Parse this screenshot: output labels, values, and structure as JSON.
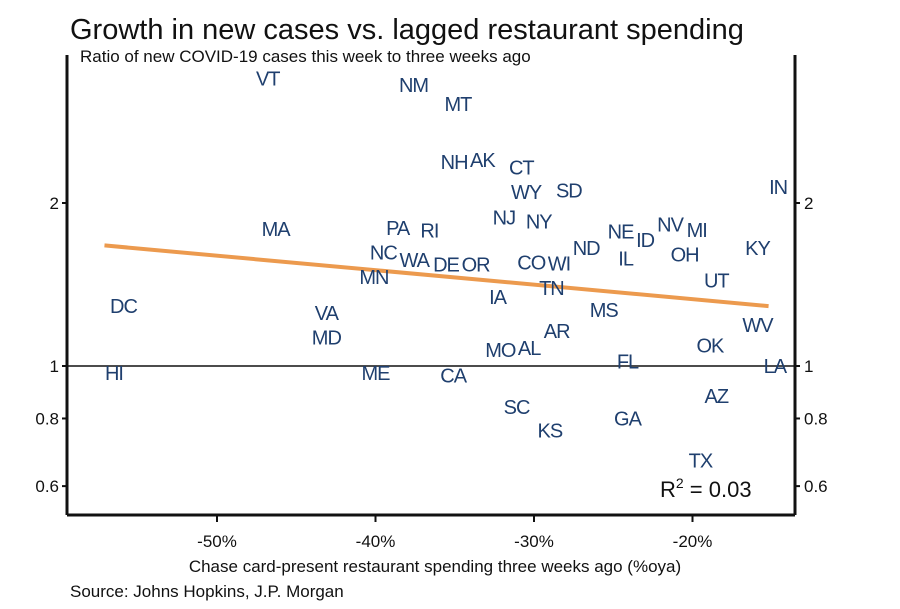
{
  "chart_data": {
    "type": "scatter",
    "title": "Growth in new cases vs. lagged restaurant spending",
    "subtitle": "Ratio of new COVID-19 cases this week to three weeks ago",
    "xlabel": "Chase card-present restaurant spending three weeks ago (%oya)",
    "ylabel": "",
    "source": "Source:  Johns Hopkins, J.P. Morgan",
    "annotation": {
      "label": "R",
      "sup": "2",
      "text": " = 0.03"
    },
    "xlim": [
      -59.5,
      -13.5
    ],
    "ylim": [
      0.53,
      3.75
    ],
    "y_scale": "log",
    "x_ticks": [
      -50,
      -40,
      -30,
      -20
    ],
    "x_tick_labels": [
      "-50%",
      "-40%",
      "-30%",
      "-20%"
    ],
    "y_ticks": [
      0.6,
      0.8,
      1,
      2
    ],
    "y_tick_labels": [
      "0.6",
      "0.8",
      "1",
      "2"
    ],
    "reference_line_y": 1,
    "grid": false,
    "point_color": "#1f3f6e",
    "trend_color": "#ec9a4e",
    "trendline": {
      "x": [
        -57.1,
        -15.2
      ],
      "y": [
        1.67,
        1.29
      ]
    },
    "points": [
      {
        "label": "VT",
        "x": -46.8,
        "y": 3.55
      },
      {
        "label": "NM",
        "x": -37.6,
        "y": 3.3
      },
      {
        "label": "MT",
        "x": -34.8,
        "y": 3.05
      },
      {
        "label": "NH",
        "x": -35.0,
        "y": 2.38
      },
      {
        "label": "AK",
        "x": -33.3,
        "y": 2.4
      },
      {
        "label": "CT",
        "x": -30.8,
        "y": 2.27
      },
      {
        "label": "WY",
        "x": -30.5,
        "y": 2.15
      },
      {
        "label": "SD",
        "x": -27.8,
        "y": 2.11
      },
      {
        "label": "IN",
        "x": -14.6,
        "y": 2.14
      },
      {
        "label": "MA",
        "x": -46.3,
        "y": 1.79
      },
      {
        "label": "PA",
        "x": -38.6,
        "y": 1.8
      },
      {
        "label": "RI",
        "x": -36.6,
        "y": 1.78
      },
      {
        "label": "NJ",
        "x": -31.9,
        "y": 1.88
      },
      {
        "label": "NY",
        "x": -29.7,
        "y": 1.85
      },
      {
        "label": "NE",
        "x": -24.1,
        "y": 1.77
      },
      {
        "label": "ID",
        "x": -22.8,
        "y": 1.71
      },
      {
        "label": "NV",
        "x": -21.5,
        "y": 1.79
      },
      {
        "label": "MI",
        "x": -20.3,
        "y": 1.74
      },
      {
        "label": "OH",
        "x": -20.5,
        "y": 1.68
      },
      {
        "label": "KY",
        "x": -15.9,
        "y": 1.65
      },
      {
        "label": "ND",
        "x": -27.0,
        "y": 1.65
      },
      {
        "label": "IL",
        "x": -24.2,
        "y": 1.58
      },
      {
        "label": "NC",
        "x": -39.1,
        "y": 1.58
      },
      {
        "label": "WA",
        "x": -37.4,
        "y": 1.57
      },
      {
        "label": "DE",
        "x": -36.0,
        "y": 1.54
      },
      {
        "label": "MN",
        "x": -40.1,
        "y": 1.5
      },
      {
        "label": "OR",
        "x": -33.8,
        "y": 1.54
      },
      {
        "label": "CO",
        "x": -29.9,
        "y": 1.54
      },
      {
        "label": "WI",
        "x": -28.4,
        "y": 1.54
      },
      {
        "label": "TN",
        "x": -28.9,
        "y": 1.41
      },
      {
        "label": "UT",
        "x": -18.5,
        "y": 1.44
      },
      {
        "label": "IA",
        "x": -32.3,
        "y": 1.34
      },
      {
        "label": "DC",
        "x": -55.9,
        "y": 1.29
      },
      {
        "label": "MS",
        "x": -25.6,
        "y": 1.27
      },
      {
        "label": "VA",
        "x": -43.1,
        "y": 1.21
      },
      {
        "label": "MD",
        "x": -43.1,
        "y": 1.17
      },
      {
        "label": "AR",
        "x": -28.6,
        "y": 1.16
      },
      {
        "label": "WV",
        "x": -15.9,
        "y": 1.19
      },
      {
        "label": "OK",
        "x": -18.9,
        "y": 1.09
      },
      {
        "label": "MO",
        "x": -32.0,
        "y": 1.07
      },
      {
        "label": "AL",
        "x": -30.4,
        "y": 1.08
      },
      {
        "label": "FL",
        "x": -24.1,
        "y": 1.02
      },
      {
        "label": "LA",
        "x": -14.8,
        "y": 1.0
      },
      {
        "label": "HI",
        "x": -56.5,
        "y": 0.97
      },
      {
        "label": "ME",
        "x": -40.0,
        "y": 0.97
      },
      {
        "label": "CA",
        "x": -35.1,
        "y": 0.96
      },
      {
        "label": "AZ",
        "x": -18.5,
        "y": 0.88
      },
      {
        "label": "SC",
        "x": -31.1,
        "y": 0.84
      },
      {
        "label": "GA",
        "x": -24.1,
        "y": 0.8
      },
      {
        "label": "KS",
        "x": -29.0,
        "y": 0.76
      },
      {
        "label": "TX",
        "x": -19.5,
        "y": 0.6
      }
    ]
  }
}
